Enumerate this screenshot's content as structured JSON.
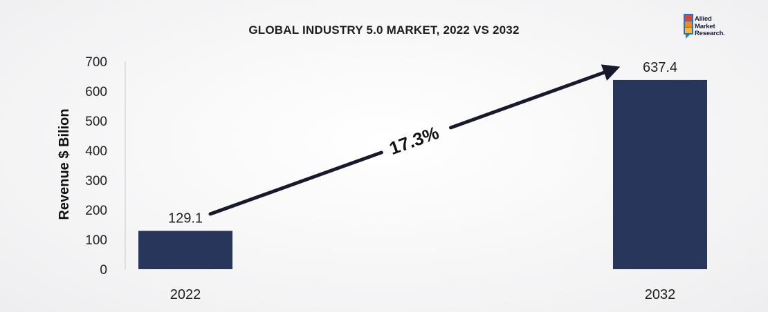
{
  "chart_data": {
    "type": "bar",
    "title": "GLOBAL INDUSTRY 5.0 MARKET, 2022 VS 2032",
    "categories": [
      "2022",
      "2032"
    ],
    "values": [
      129.1,
      637.4
    ],
    "value_labels": [
      "129.1",
      "637.4"
    ],
    "xlabel": "",
    "ylabel": "Revenue $ Bilion",
    "ylim": [
      0,
      700
    ],
    "yticks": [
      0,
      100,
      200,
      300,
      400,
      500,
      600,
      700
    ],
    "grid": false,
    "bar_color": "#27365a",
    "annotation": {
      "text": "17.3%",
      "type": "growth-arrow"
    }
  },
  "logo": {
    "lines": [
      "Allied",
      "Market",
      "Research."
    ]
  },
  "colors": {
    "bar": "#27365a",
    "arrow": "#161a2b",
    "logo_orange": "#f08a1c",
    "logo_red": "#e8412c",
    "logo_blue": "#1e78c8"
  }
}
